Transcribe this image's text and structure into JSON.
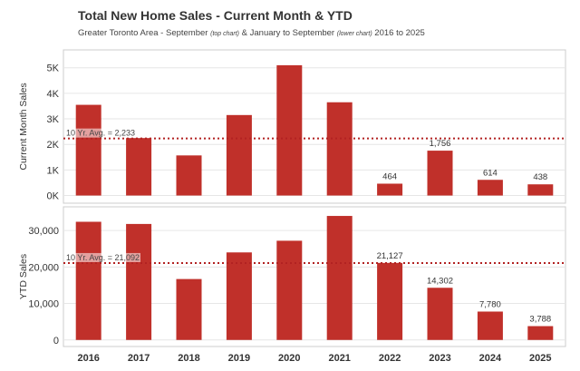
{
  "title": "Total New Home Sales - Current Month & YTD",
  "subtitle": {
    "part1": "Greater Toronto Area - September ",
    "top_note": "(top chart)",
    "part2": " & January to September ",
    "bottom_note": "(lower chart)",
    "part3": " 2016 to 2025"
  },
  "colors": {
    "bar": "#c0302a",
    "avg_line": "#b22222",
    "grid": "#e6e6e6",
    "axis": "#cccccc"
  },
  "chart_data": [
    {
      "type": "bar",
      "title": "",
      "ylabel": "Current Month Sales",
      "categories": [
        "2016",
        "2017",
        "2018",
        "2019",
        "2020",
        "2021",
        "2022",
        "2023",
        "2024",
        "2025"
      ],
      "values": [
        3550,
        2250,
        1570,
        3150,
        5100,
        3650,
        464,
        1756,
        614,
        438
      ],
      "ylim": [
        -300,
        5700
      ],
      "yticks": [
        0,
        1000,
        2000,
        3000,
        4000,
        5000
      ],
      "ytick_labels": [
        "0K",
        "1K",
        "2K",
        "3K",
        "4K",
        "5K"
      ],
      "data_labels": {
        "6": "464",
        "7": "1,756",
        "8": "614",
        "9": "438"
      },
      "reference_line": {
        "value": 2233,
        "label": "10 Yr. Avg. = 2,233"
      }
    },
    {
      "type": "bar",
      "title": "",
      "ylabel": "YTD Sales",
      "categories": [
        "2016",
        "2017",
        "2018",
        "2019",
        "2020",
        "2021",
        "2022",
        "2023",
        "2024",
        "2025"
      ],
      "values": [
        32400,
        31800,
        16700,
        24000,
        27200,
        34000,
        21127,
        14302,
        7780,
        3788
      ],
      "ylim": [
        -1800,
        36500
      ],
      "yticks": [
        0,
        10000,
        20000,
        30000
      ],
      "ytick_labels": [
        "0",
        "10,000",
        "20,000",
        "30,000"
      ],
      "data_labels": {
        "6": "21,127",
        "7": "14,302",
        "8": "7,780",
        "9": "3,788"
      },
      "reference_line": {
        "value": 21092,
        "label": "10 Yr. Avg. = 21,092"
      }
    }
  ]
}
